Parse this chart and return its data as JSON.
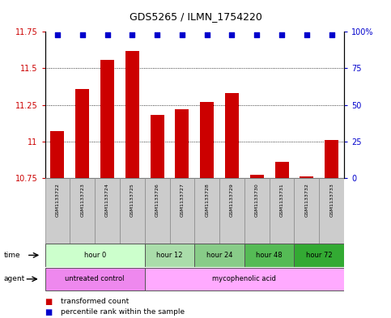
{
  "title": "GDS5265 / ILMN_1754220",
  "samples": [
    "GSM1133722",
    "GSM1133723",
    "GSM1133724",
    "GSM1133725",
    "GSM1133726",
    "GSM1133727",
    "GSM1133728",
    "GSM1133729",
    "GSM1133730",
    "GSM1133731",
    "GSM1133732",
    "GSM1133733"
  ],
  "bar_values": [
    11.07,
    11.36,
    11.56,
    11.62,
    11.18,
    11.22,
    11.27,
    11.33,
    10.77,
    10.86,
    10.76,
    11.01
  ],
  "percentile_values": [
    98,
    98,
    98,
    98,
    98,
    98,
    98,
    98,
    98,
    98,
    98,
    98
  ],
  "bar_color": "#cc0000",
  "dot_color": "#0000cc",
  "ylim_left": [
    10.75,
    11.75
  ],
  "ylim_right": [
    0,
    100
  ],
  "yticks_left": [
    10.75,
    11.0,
    11.25,
    11.5,
    11.75
  ],
  "yticks_right": [
    0,
    25,
    50,
    75,
    100
  ],
  "ytick_labels_left": [
    "10.75",
    "11",
    "11.25",
    "11.5",
    "11.75"
  ],
  "ytick_labels_right": [
    "0",
    "25",
    "50",
    "75",
    "100%"
  ],
  "background_color": "#ffffff",
  "plot_bg": "#ffffff",
  "sample_box_color": "#cccccc",
  "time_groups": [
    {
      "label": "hour 0",
      "start": 0,
      "end": 3,
      "color": "#ccffcc"
    },
    {
      "label": "hour 12",
      "start": 4,
      "end": 5,
      "color": "#aaddaa"
    },
    {
      "label": "hour 24",
      "start": 6,
      "end": 7,
      "color": "#88cc88"
    },
    {
      "label": "hour 48",
      "start": 8,
      "end": 9,
      "color": "#55bb55"
    },
    {
      "label": "hour 72",
      "start": 10,
      "end": 11,
      "color": "#33aa33"
    }
  ],
  "agent_groups": [
    {
      "label": "untreated control",
      "start": 0,
      "end": 3,
      "color": "#ee88ee"
    },
    {
      "label": "mycophenolic acid",
      "start": 4,
      "end": 11,
      "color": "#ffaaff"
    }
  ],
  "legend_items": [
    {
      "label": "transformed count",
      "color": "#cc0000"
    },
    {
      "label": "percentile rank within the sample",
      "color": "#0000cc"
    }
  ]
}
